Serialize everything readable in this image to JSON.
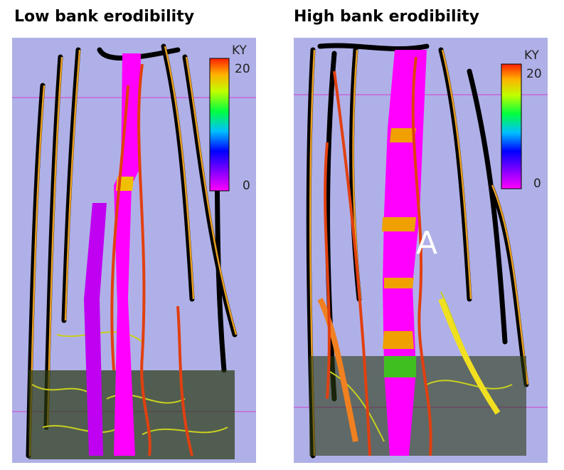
{
  "panels": [
    {
      "title": "Low bank erodibility",
      "colorbar": {
        "label": "KY",
        "max": 20,
        "min": 0
      }
    },
    {
      "title": "High bank erodibility",
      "colorbar": {
        "label": "KY",
        "max": 20,
        "min": 0
      },
      "annotation": "A"
    }
  ]
}
